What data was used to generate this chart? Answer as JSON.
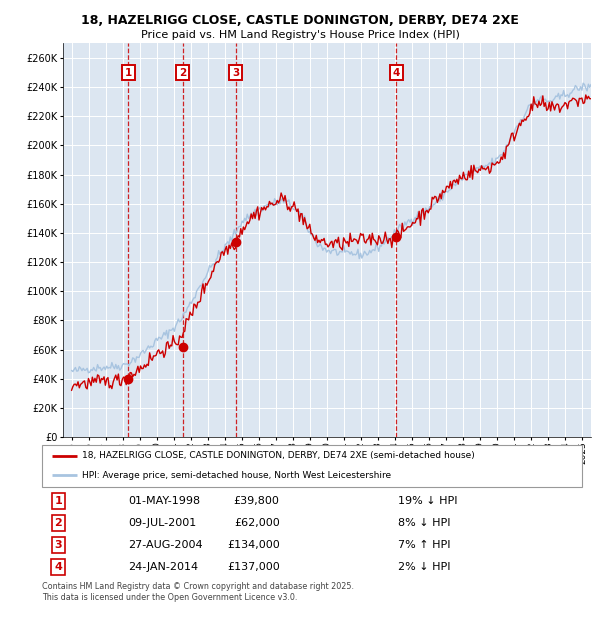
{
  "title": "18, HAZELRIGG CLOSE, CASTLE DONINGTON, DERBY, DE74 2XE",
  "subtitle": "Price paid vs. HM Land Registry's House Price Index (HPI)",
  "legend_line1": "18, HAZELRIGG CLOSE, CASTLE DONINGTON, DERBY, DE74 2XE (semi-detached house)",
  "legend_line2": "HPI: Average price, semi-detached house, North West Leicestershire",
  "footer": "Contains HM Land Registry data © Crown copyright and database right 2025.\nThis data is licensed under the Open Government Licence v3.0.",
  "sale_transactions": [
    {
      "num": 1,
      "date_str": "01-MAY-1998",
      "price": 39800,
      "pct": "19%",
      "dir": "↓",
      "date_x": 1998.33
    },
    {
      "num": 2,
      "date_str": "09-JUL-2001",
      "price": 62000,
      "pct": "8%",
      "dir": "↓",
      "date_x": 2001.52
    },
    {
      "num": 3,
      "date_str": "27-AUG-2004",
      "price": 134000,
      "pct": "7%",
      "dir": "↑",
      "date_x": 2004.65
    },
    {
      "num": 4,
      "date_str": "24-JAN-2014",
      "price": 137000,
      "pct": "2%",
      "dir": "↓",
      "date_x": 2014.07
    }
  ],
  "ylim": [
    0,
    270000
  ],
  "yticks": [
    0,
    20000,
    40000,
    60000,
    80000,
    100000,
    120000,
    140000,
    160000,
    180000,
    200000,
    220000,
    240000,
    260000
  ],
  "xlim": [
    1994.5,
    2025.5
  ],
  "xticks": [
    1995,
    1996,
    1997,
    1998,
    1999,
    2000,
    2001,
    2002,
    2003,
    2004,
    2005,
    2006,
    2007,
    2008,
    2009,
    2010,
    2011,
    2012,
    2013,
    2014,
    2015,
    2016,
    2017,
    2018,
    2019,
    2020,
    2021,
    2022,
    2023,
    2024,
    2025
  ],
  "hpi_color": "#a8c4e0",
  "price_color": "#cc0000",
  "plot_bg": "#dce6f1",
  "grid_color": "#ffffff",
  "box_color": "#cc0000",
  "table_data": [
    [
      "1",
      "01-MAY-1998",
      "£39,800",
      "19% ↓ HPI"
    ],
    [
      "2",
      "09-JUL-2001",
      "£62,000",
      "8% ↓ HPI"
    ],
    [
      "3",
      "27-AUG-2004",
      "£134,000",
      "7% ↑ HPI"
    ],
    [
      "4",
      "24-JAN-2014",
      "£137,000",
      "2% ↓ HPI"
    ]
  ]
}
